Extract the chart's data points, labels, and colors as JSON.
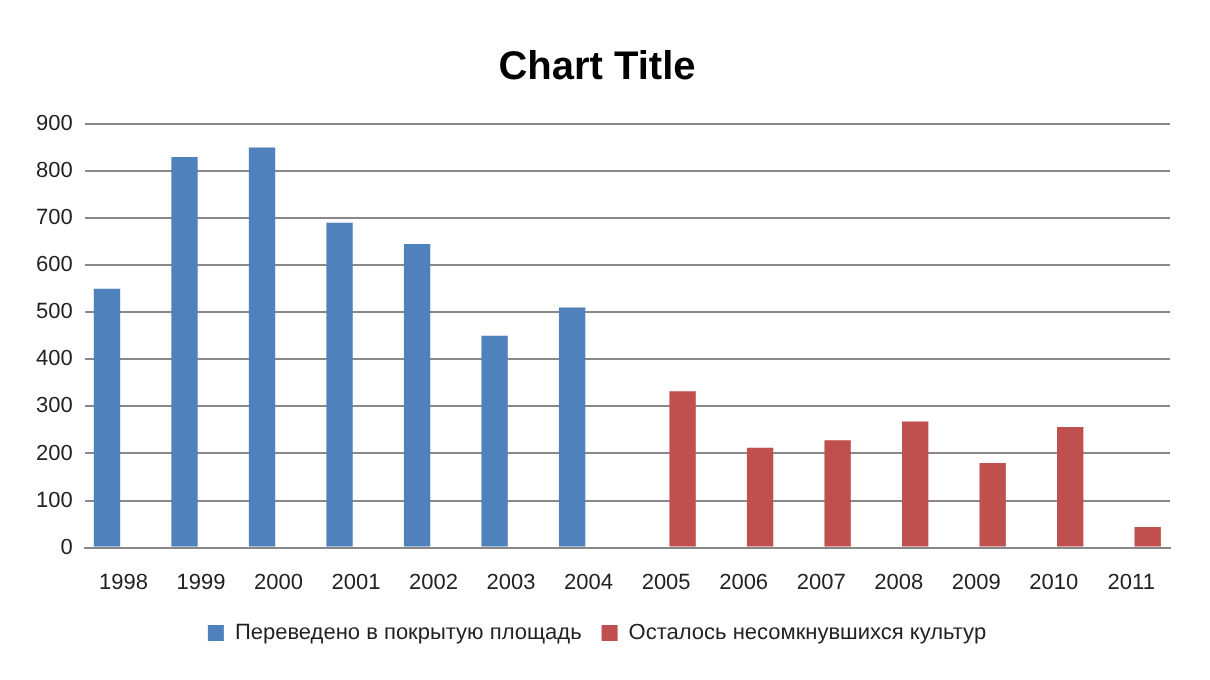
{
  "chart_data": {
    "type": "bar",
    "title": "Chart Title",
    "categories": [
      "1998",
      "1999",
      "2000",
      "2001",
      "2002",
      "2003",
      "2004",
      "2005",
      "2006",
      "2007",
      "2008",
      "2009",
      "2010",
      "2011"
    ],
    "series": [
      {
        "name": "Переведено в покрытую площадь",
        "color": "#4f81bd",
        "values": [
          550,
          830,
          850,
          690,
          645,
          450,
          510,
          null,
          null,
          null,
          null,
          null,
          null,
          null
        ]
      },
      {
        "name": "Осталось несомкнувшихся культур",
        "color": "#c0504d",
        "values": [
          null,
          null,
          null,
          null,
          null,
          null,
          null,
          332,
          212,
          228,
          268,
          180,
          256,
          44
        ]
      }
    ],
    "ylim": [
      0,
      900
    ],
    "yticks": [
      0,
      100,
      200,
      300,
      400,
      500,
      600,
      700,
      800,
      900
    ],
    "grid": "y",
    "legend": "bottom"
  }
}
